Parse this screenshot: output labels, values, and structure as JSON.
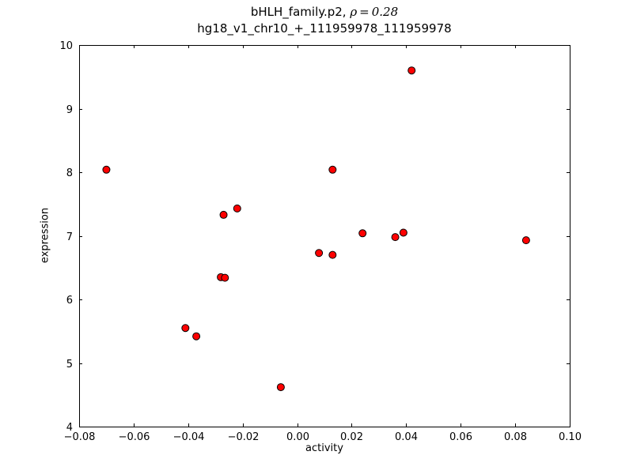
{
  "title": {
    "line1_prefix": "bHLH_family.p2, ",
    "line1_math": "ρ = 0.28",
    "line2": "hg18_v1_chr10_+_111959978_111959978"
  },
  "chart_data": {
    "type": "scatter",
    "title": "bHLH_family.p2, ρ=0.28",
    "subtitle": "hg18_v1_chr10_+_111959978_111959978",
    "xlabel": "activity",
    "ylabel": "expression",
    "xlim": [
      -0.08,
      0.1
    ],
    "ylim": [
      4,
      10
    ],
    "xticks": [
      -0.08,
      -0.06,
      -0.04,
      -0.02,
      0.0,
      0.02,
      0.04,
      0.06,
      0.08,
      0.1
    ],
    "xtick_labels": [
      "−0.08",
      "−0.06",
      "−0.04",
      "−0.02",
      "0.00",
      "0.02",
      "0.04",
      "0.06",
      "0.08",
      "0.10"
    ],
    "yticks": [
      4,
      5,
      6,
      7,
      8,
      9,
      10
    ],
    "ytick_labels": [
      "4",
      "5",
      "6",
      "7",
      "8",
      "9",
      "10"
    ],
    "grid": false,
    "legend": "none",
    "marker": {
      "shape": "circle",
      "color": "#ff0000",
      "edge": "#000000",
      "radius": 4.5
    },
    "frame_color": "#000000",
    "points": [
      {
        "x": -0.07,
        "y": 8.04
      },
      {
        "x": -0.041,
        "y": 5.55
      },
      {
        "x": -0.037,
        "y": 5.42
      },
      {
        "x": -0.028,
        "y": 6.35
      },
      {
        "x": -0.0265,
        "y": 6.34
      },
      {
        "x": -0.027,
        "y": 7.33
      },
      {
        "x": -0.022,
        "y": 7.43
      },
      {
        "x": -0.006,
        "y": 4.62
      },
      {
        "x": 0.008,
        "y": 6.73
      },
      {
        "x": 0.013,
        "y": 6.7
      },
      {
        "x": 0.013,
        "y": 8.04
      },
      {
        "x": 0.024,
        "y": 7.04
      },
      {
        "x": 0.036,
        "y": 6.98
      },
      {
        "x": 0.039,
        "y": 7.05
      },
      {
        "x": 0.042,
        "y": 9.6
      },
      {
        "x": 0.084,
        "y": 6.93
      }
    ]
  }
}
